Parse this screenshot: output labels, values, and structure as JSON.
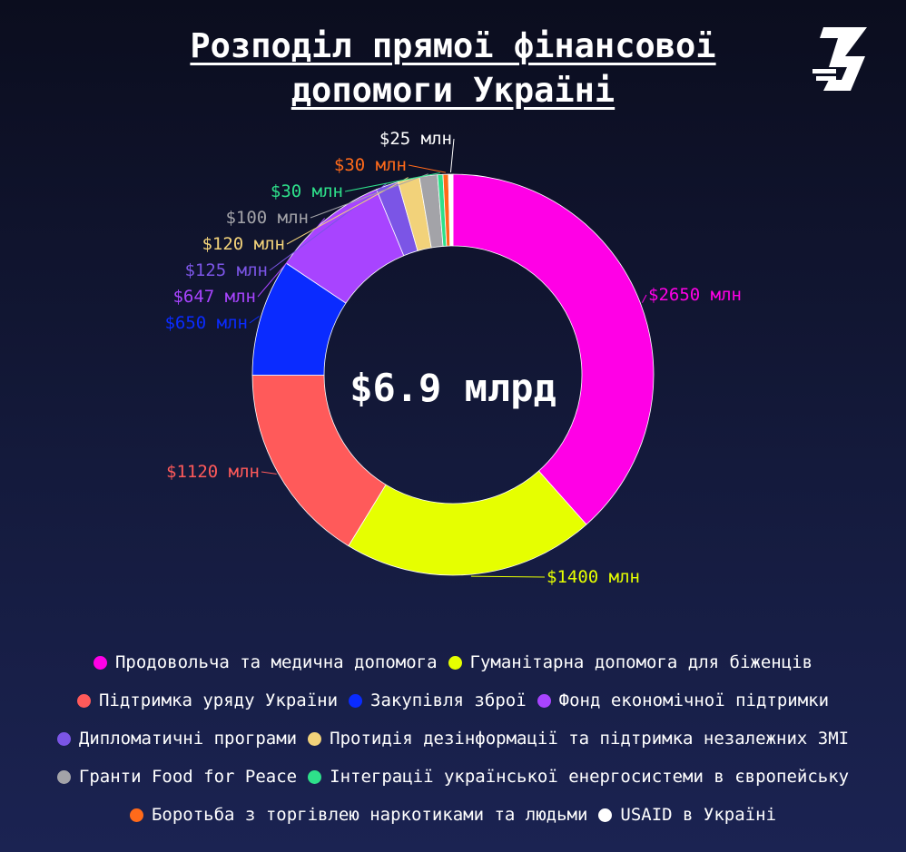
{
  "title": {
    "line1": "Розподіл прямої фінансової ",
    "line2": "допомоги Україні"
  },
  "logo": {
    "name": "logo-icon",
    "color": "#ffffff"
  },
  "chart_data": {
    "type": "donut",
    "center_label": "$6.9 млрд",
    "slices": [
      {
        "name": "Продовольча та медична допомога",
        "value": 2650,
        "label": "$2650 млн",
        "color": "#ff00e6"
      },
      {
        "name": "Гуманітарна допомога для біженців",
        "value": 1400,
        "label": "$1400 млн",
        "color": "#e6ff00"
      },
      {
        "name": "Підтримка уряду України",
        "value": 1120,
        "label": "$1120 млн",
        "color": "#ff5a5a"
      },
      {
        "name": "Закупівля зброї",
        "value": 650,
        "label": "$650 млн",
        "color": "#0a2bff"
      },
      {
        "name": "Фонд економічної підтримки",
        "value": 647,
        "label": "$647 млн",
        "color": "#a844ff"
      },
      {
        "name": "Дипломатичні програми",
        "value": 125,
        "label": "$125 млн",
        "color": "#7b55e6"
      },
      {
        "name": "Протидія дезінформації та підтримка незалежних ЗМІ",
        "value": 120,
        "label": "$120 млн",
        "color": "#f2d27a"
      },
      {
        "name": "Гранти Food for Peace",
        "value": 100,
        "label": "$100 млн",
        "color": "#a3a3a8"
      },
      {
        "name": "Інтеграції української енергосистеми в європейську",
        "value": 30,
        "label": "$30 млн",
        "color": "#2ee08a"
      },
      {
        "name": "Боротьба з торгівлею наркотиками та людьми",
        "value": 30,
        "label": "$30 млн",
        "color": "#ff6a1a"
      },
      {
        "name": "USAID в Україні",
        "value": 25,
        "label": "$25 млн",
        "color": "#ffffff"
      }
    ]
  },
  "legend": {
    "rows": [
      [
        0,
        1
      ],
      [
        2,
        3,
        4
      ],
      [
        5,
        6
      ],
      [
        7,
        8
      ],
      [
        9,
        10
      ]
    ]
  }
}
